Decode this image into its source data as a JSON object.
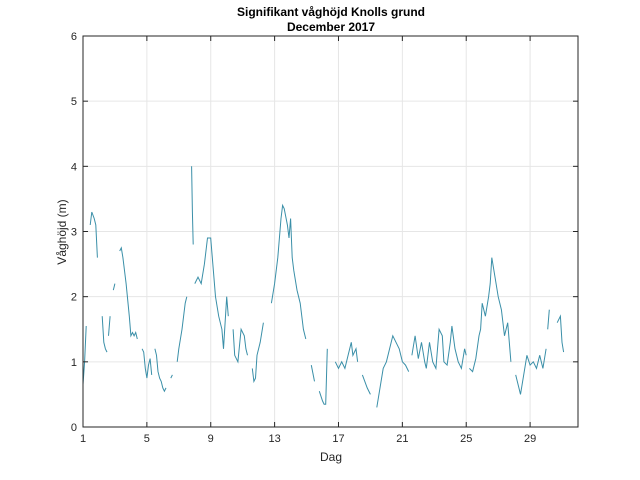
{
  "chart_data": {
    "type": "line",
    "title": "Signifikant våghöjd Knolls grund",
    "subtitle": "December 2017",
    "xlabel": "Dag",
    "ylabel": "Våghöjd (m)",
    "xlim": [
      1,
      32
    ],
    "ylim": [
      0,
      6
    ],
    "xticks": [
      1,
      5,
      9,
      13,
      17,
      21,
      25,
      29
    ],
    "yticks": [
      0,
      1,
      2,
      3,
      4,
      5,
      6
    ],
    "grid": true,
    "series_color": "#3a8fa8",
    "series": [
      {
        "name": "Våghöjd",
        "points": [
          [
            1.0,
            0.65
          ],
          [
            1.1,
            1.0
          ],
          [
            1.2,
            1.55
          ],
          null,
          [
            1.45,
            3.1
          ],
          [
            1.55,
            3.3
          ],
          [
            1.7,
            3.2
          ],
          [
            1.8,
            3.1
          ],
          [
            1.9,
            2.6
          ],
          null,
          [
            2.2,
            1.7
          ],
          [
            2.3,
            1.3
          ],
          [
            2.4,
            1.2
          ],
          [
            2.5,
            1.15
          ],
          null,
          [
            2.6,
            1.4
          ],
          [
            2.7,
            1.7
          ],
          null,
          [
            2.9,
            2.1
          ],
          [
            3.0,
            2.2
          ],
          null,
          [
            3.3,
            2.7
          ],
          [
            3.4,
            2.75
          ],
          [
            3.5,
            2.6
          ],
          [
            3.7,
            2.2
          ],
          [
            3.9,
            1.7
          ],
          [
            4.0,
            1.4
          ],
          [
            4.1,
            1.45
          ],
          [
            4.2,
            1.4
          ],
          [
            4.3,
            1.45
          ],
          [
            4.4,
            1.35
          ],
          null,
          [
            4.7,
            1.2
          ],
          [
            4.8,
            1.15
          ],
          [
            4.9,
            0.9
          ],
          [
            5.0,
            0.75
          ],
          [
            5.1,
            0.95
          ],
          [
            5.2,
            1.05
          ],
          [
            5.3,
            0.8
          ],
          null,
          [
            5.5,
            1.2
          ],
          [
            5.6,
            1.1
          ],
          [
            5.7,
            0.85
          ],
          [
            5.8,
            0.75
          ],
          [
            5.9,
            0.7
          ],
          [
            6.0,
            0.6
          ],
          [
            6.1,
            0.55
          ],
          [
            6.2,
            0.6
          ],
          null,
          [
            6.5,
            0.75
          ],
          [
            6.6,
            0.8
          ],
          null,
          [
            6.9,
            1.0
          ],
          [
            7.0,
            1.2
          ],
          [
            7.2,
            1.5
          ],
          [
            7.4,
            1.9
          ],
          [
            7.5,
            2.0
          ],
          null,
          [
            7.8,
            4.0
          ],
          [
            7.85,
            3.3
          ],
          [
            7.9,
            2.8
          ],
          null,
          [
            8.0,
            2.2
          ],
          [
            8.2,
            2.3
          ],
          [
            8.4,
            2.2
          ],
          [
            8.6,
            2.5
          ],
          [
            8.8,
            2.9
          ],
          [
            9.0,
            2.9
          ],
          [
            9.1,
            2.6
          ],
          [
            9.3,
            2.0
          ],
          [
            9.5,
            1.7
          ],
          [
            9.7,
            1.5
          ],
          [
            9.8,
            1.2
          ],
          [
            9.9,
            1.6
          ],
          [
            10.0,
            2.0
          ],
          [
            10.1,
            1.7
          ],
          null,
          [
            10.4,
            1.5
          ],
          [
            10.5,
            1.1
          ],
          [
            10.7,
            1.0
          ],
          [
            10.9,
            1.5
          ],
          [
            11.1,
            1.4
          ],
          [
            11.2,
            1.2
          ],
          [
            11.3,
            1.1
          ],
          null,
          [
            11.6,
            0.9
          ],
          [
            11.7,
            0.7
          ],
          [
            11.8,
            0.75
          ],
          [
            11.9,
            1.1
          ],
          [
            12.1,
            1.3
          ],
          [
            12.3,
            1.6
          ],
          null,
          [
            12.8,
            1.9
          ],
          [
            13.0,
            2.2
          ],
          [
            13.2,
            2.6
          ],
          [
            13.4,
            3.2
          ],
          [
            13.5,
            3.4
          ],
          [
            13.6,
            3.35
          ],
          [
            13.8,
            3.1
          ],
          [
            13.9,
            2.9
          ],
          [
            14.0,
            3.2
          ],
          [
            14.1,
            2.6
          ],
          [
            14.2,
            2.4
          ],
          [
            14.4,
            2.1
          ],
          [
            14.6,
            1.9
          ],
          [
            14.8,
            1.5
          ],
          [
            14.95,
            1.35
          ],
          null,
          [
            15.3,
            0.95
          ],
          [
            15.5,
            0.7
          ],
          null,
          [
            15.8,
            0.55
          ],
          [
            16.0,
            0.4
          ],
          [
            16.1,
            0.35
          ],
          [
            16.2,
            0.35
          ],
          [
            16.3,
            1.2
          ],
          null,
          [
            16.5,
            1.3
          ],
          null,
          [
            16.8,
            1.0
          ],
          [
            17.0,
            0.9
          ],
          [
            17.2,
            1.0
          ],
          [
            17.4,
            0.9
          ],
          [
            17.6,
            1.1
          ],
          [
            17.8,
            1.3
          ],
          [
            17.9,
            1.1
          ],
          [
            18.1,
            1.2
          ],
          [
            18.2,
            1.0
          ],
          null,
          [
            18.5,
            0.8
          ],
          [
            18.8,
            0.6
          ],
          [
            19.0,
            0.5
          ],
          null,
          [
            19.4,
            0.3
          ],
          [
            19.6,
            0.6
          ],
          [
            19.8,
            0.9
          ],
          [
            20.0,
            1.0
          ],
          [
            20.2,
            1.2
          ],
          [
            20.4,
            1.4
          ],
          [
            20.6,
            1.3
          ],
          [
            20.8,
            1.2
          ],
          [
            21.0,
            1.0
          ],
          [
            21.2,
            0.95
          ],
          [
            21.4,
            0.85
          ],
          null,
          [
            21.6,
            1.1
          ],
          [
            21.8,
            1.4
          ],
          [
            22.0,
            1.05
          ],
          [
            22.2,
            1.3
          ],
          [
            22.4,
            1.0
          ],
          [
            22.5,
            0.9
          ],
          [
            22.7,
            1.3
          ],
          [
            22.9,
            1.0
          ],
          [
            23.1,
            0.9
          ],
          [
            23.3,
            1.5
          ],
          [
            23.5,
            1.4
          ],
          [
            23.6,
            1.0
          ],
          [
            23.8,
            0.95
          ],
          [
            24.0,
            1.3
          ],
          [
            24.1,
            1.55
          ],
          [
            24.3,
            1.2
          ],
          [
            24.5,
            1.0
          ],
          [
            24.7,
            0.9
          ],
          [
            24.9,
            1.2
          ],
          [
            25.0,
            1.1
          ],
          null,
          [
            25.2,
            0.9
          ],
          [
            25.4,
            0.85
          ],
          [
            25.6,
            1.05
          ],
          [
            25.8,
            1.4
          ],
          [
            25.9,
            1.5
          ],
          [
            26.0,
            1.9
          ],
          [
            26.2,
            1.7
          ],
          [
            26.4,
            2.0
          ],
          [
            26.5,
            2.2
          ],
          [
            26.6,
            2.6
          ],
          [
            26.8,
            2.3
          ],
          [
            27.0,
            2.0
          ],
          [
            27.2,
            1.8
          ],
          [
            27.4,
            1.4
          ],
          [
            27.6,
            1.6
          ],
          [
            27.8,
            1.0
          ],
          null,
          [
            28.1,
            0.8
          ],
          [
            28.3,
            0.6
          ],
          [
            28.4,
            0.5
          ],
          [
            28.6,
            0.8
          ],
          [
            28.8,
            1.1
          ],
          [
            29.0,
            0.95
          ],
          [
            29.2,
            1.0
          ],
          [
            29.4,
            0.9
          ],
          [
            29.6,
            1.1
          ],
          [
            29.8,
            0.9
          ],
          [
            30.0,
            1.2
          ],
          null,
          [
            30.1,
            1.5
          ],
          [
            30.2,
            1.8
          ],
          null,
          [
            30.5,
            1.9
          ],
          null,
          [
            30.7,
            1.6
          ],
          [
            30.9,
            1.7
          ],
          [
            31.0,
            1.3
          ],
          [
            31.1,
            1.15
          ]
        ]
      }
    ]
  }
}
